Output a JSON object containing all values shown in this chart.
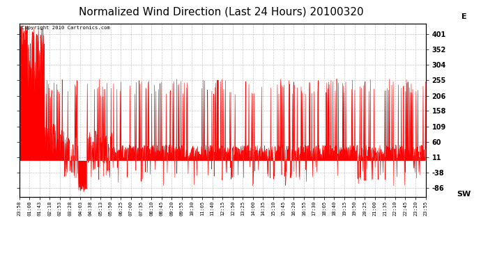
{
  "title": "Normalized Wind Direction (Last 24 Hours) 20100320",
  "copyright_text": "Copyright 2010 Cartronics.com",
  "line_color": "#ff0000",
  "background_color": "#ffffff",
  "grid_color": "#bbbbbb",
  "title_fontsize": 11,
  "yticks": [
    401,
    352,
    304,
    255,
    206,
    158,
    109,
    60,
    11,
    -38,
    -86
  ],
  "ymin": -115,
  "ymax": 435,
  "ylabel_e": "E",
  "ylabel_sw": "SW",
  "xtick_labels": [
    "23:58",
    "01:08",
    "01:43",
    "02:18",
    "02:53",
    "03:28",
    "04:03",
    "04:38",
    "05:13",
    "05:50",
    "06:25",
    "07:00",
    "07:35",
    "08:10",
    "08:45",
    "09:20",
    "09:55",
    "10:30",
    "11:05",
    "11:40",
    "12:15",
    "12:50",
    "13:25",
    "14:00",
    "14:35",
    "15:10",
    "15:45",
    "16:20",
    "16:55",
    "17:30",
    "18:05",
    "18:40",
    "19:15",
    "19:50",
    "20:25",
    "21:00",
    "21:35",
    "22:10",
    "22:45",
    "23:20",
    "23:55"
  ],
  "seed": 42
}
